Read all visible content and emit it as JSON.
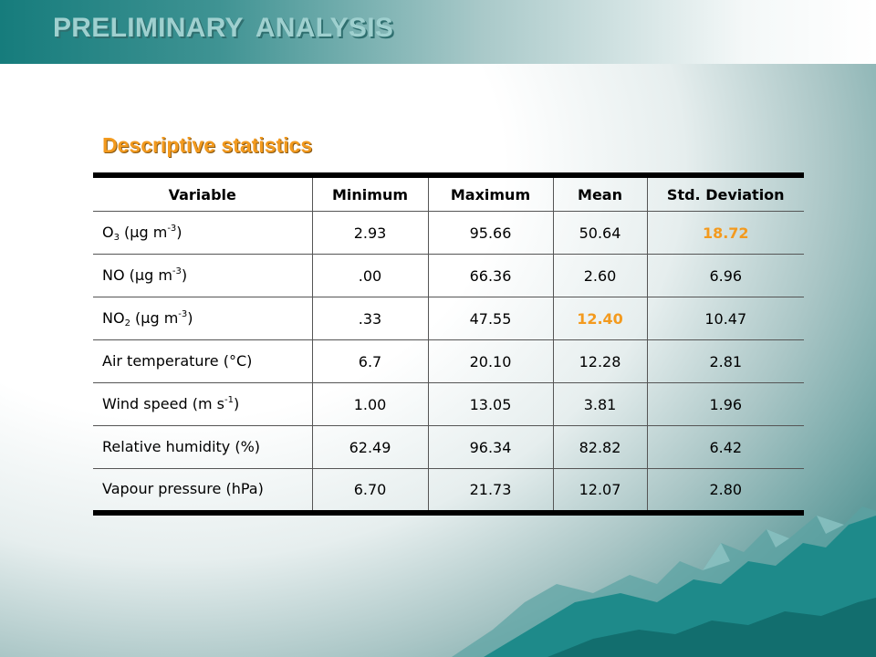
{
  "header": {
    "title": "PRELIMINARY  ANALYSIS"
  },
  "section": {
    "title": "Descriptive statistics"
  },
  "colors": {
    "header_teal": "#167c7c",
    "accent_orange": "#f39a1e",
    "mountain_teal": "#1e8a8a"
  },
  "table": {
    "columns": [
      "Variable",
      "Minimum",
      "Maximum",
      "Mean",
      "Std. Deviation"
    ],
    "rows": [
      {
        "var": {
          "base": "O",
          "sub": "3",
          "mid": " (μg m",
          "sup": "-3",
          "end": ")"
        },
        "min": "2.93",
        "max": "95.66",
        "mean": "50.64",
        "std": "18.72",
        "highlight": "std"
      },
      {
        "var": {
          "base": "NO",
          "sub": "",
          "mid": " (μg m",
          "sup": "-3",
          "end": ")"
        },
        "min": ".00",
        "max": "66.36",
        "mean": "2.60",
        "std": "6.96",
        "highlight": ""
      },
      {
        "var": {
          "base": "NO",
          "sub": "2",
          "mid": " (μg m",
          "sup": "-3",
          "end": ")"
        },
        "min": ".33",
        "max": "47.55",
        "mean": "12.40",
        "std": "10.47",
        "highlight": "mean"
      },
      {
        "var": {
          "base": "Air temperature (°C)",
          "sub": "",
          "mid": "",
          "sup": "",
          "end": ""
        },
        "min": "6.7",
        "max": "20.10",
        "mean": "12.28",
        "std": "2.81",
        "highlight": ""
      },
      {
        "var": {
          "base": "Wind speed (m s",
          "sub": "",
          "mid": "",
          "sup": "-1",
          "end": ")"
        },
        "min": "1.00",
        "max": "13.05",
        "mean": "3.81",
        "std": "1.96",
        "highlight": ""
      },
      {
        "var": {
          "base": "Relative humidity (%)",
          "sub": "",
          "mid": "",
          "sup": "",
          "end": ""
        },
        "min": "62.49",
        "max": "96.34",
        "mean": "82.82",
        "std": "6.42",
        "highlight": ""
      },
      {
        "var": {
          "base": "Vapour pressure (hPa)",
          "sub": "",
          "mid": "",
          "sup": "",
          "end": ""
        },
        "min": "6.70",
        "max": "21.73",
        "mean": "12.07",
        "std": "2.80",
        "highlight": ""
      }
    ]
  }
}
